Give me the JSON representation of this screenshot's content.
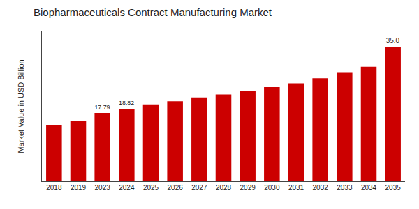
{
  "chart_data": {
    "type": "bar",
    "title": "Biopharmaceuticals Contract Manufacturing Market",
    "y_label": "Market Value in USD Billion",
    "categories": [
      "2018",
      "2019",
      "2023",
      "2024",
      "2025",
      "2026",
      "2027",
      "2028",
      "2029",
      "2030",
      "2031",
      "2032",
      "2033",
      "2034",
      "2035"
    ],
    "values": [
      14.5,
      15.8,
      17.79,
      18.82,
      19.8,
      20.8,
      21.8,
      22.6,
      23.5,
      24.5,
      25.5,
      26.8,
      28.2,
      29.8,
      35.0
    ],
    "value_labels": [
      null,
      null,
      "17.79",
      "18.82",
      null,
      null,
      null,
      null,
      null,
      null,
      null,
      null,
      null,
      null,
      "35.0"
    ],
    "color": "#cc0000",
    "ylim": [
      0,
      39
    ],
    "grid": false,
    "tick_labels": "x"
  }
}
